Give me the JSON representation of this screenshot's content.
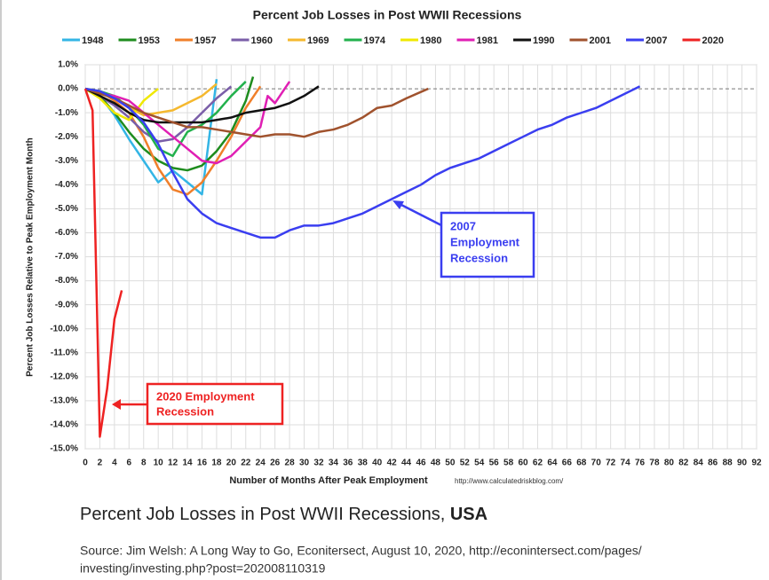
{
  "chart_data": {
    "type": "line",
    "title": "Percent Job Losses in Post WWII Recessions",
    "x_label": "Number of Months After Peak Employment",
    "y_label": "Percent Job Losses Relative to Peak Employment Month",
    "source_note": "http://www.calculatedriskblog.com/",
    "xlim": [
      0,
      92
    ],
    "xticks": [
      0,
      2,
      4,
      6,
      8,
      10,
      12,
      14,
      16,
      18,
      20,
      22,
      24,
      26,
      28,
      30,
      32,
      34,
      36,
      38,
      40,
      42,
      44,
      46,
      48,
      50,
      52,
      54,
      56,
      58,
      60,
      62,
      64,
      66,
      68,
      70,
      72,
      74,
      76,
      78,
      80,
      82,
      84,
      86,
      88,
      90,
      92
    ],
    "ylim": [
      -15,
      1
    ],
    "yticks": [
      {
        "value": 1,
        "label": "1.0%"
      },
      {
        "value": 0,
        "label": "0.0%"
      },
      {
        "value": -1,
        "label": "-1.0%"
      },
      {
        "value": -2,
        "label": "-2.0%"
      },
      {
        "value": -3,
        "label": "-3.0%"
      },
      {
        "value": -4,
        "label": "-4.0%"
      },
      {
        "value": -5,
        "label": "-5.0%"
      },
      {
        "value": -6,
        "label": "-6.0%"
      },
      {
        "value": -7,
        "label": "-7.0%"
      },
      {
        "value": -8,
        "label": "-8.0%"
      },
      {
        "value": -9,
        "label": "-9.0%"
      },
      {
        "value": -10,
        "label": "-10.0%"
      },
      {
        "value": -11,
        "label": "-11.0%"
      },
      {
        "value": -12,
        "label": "-12.0%"
      },
      {
        "value": -13,
        "label": "-13.0%"
      },
      {
        "value": -14,
        "label": "-14.0%"
      },
      {
        "value": -15,
        "label": "-15.0%"
      }
    ],
    "grid": true,
    "legend": "top",
    "series": [
      {
        "name": "1948",
        "color": "#33b5e5",
        "x": [
          0,
          2,
          4,
          6,
          8,
          10,
          12,
          14,
          16,
          17,
          18
        ],
        "values": [
          0,
          -0.3,
          -1.1,
          -2.1,
          -3,
          -3.9,
          -3.4,
          -3.9,
          -4.4,
          -2,
          0.4
        ]
      },
      {
        "name": "1953",
        "color": "#1e8c1e",
        "x": [
          0,
          2,
          4,
          6,
          8,
          10,
          12,
          14,
          16,
          18,
          20,
          22,
          23
        ],
        "values": [
          0,
          -0.3,
          -1,
          -1.8,
          -2.5,
          -3,
          -3.3,
          -3.4,
          -3.2,
          -2.6,
          -1.8,
          -0.5,
          0.5
        ]
      },
      {
        "name": "1957",
        "color": "#f07f2a",
        "x": [
          0,
          2,
          4,
          6,
          8,
          10,
          12,
          14,
          16,
          18,
          20,
          22,
          24
        ],
        "values": [
          0,
          -0.1,
          -0.5,
          -1,
          -2,
          -3.3,
          -4.2,
          -4.4,
          -3.9,
          -3,
          -2,
          -0.8,
          0.1
        ]
      },
      {
        "name": "1960",
        "color": "#7a5ea8",
        "x": [
          0,
          2,
          4,
          6,
          8,
          10,
          12,
          14,
          16,
          18,
          20
        ],
        "values": [
          0,
          -0.3,
          -0.7,
          -1.2,
          -1.8,
          -2.2,
          -2.1,
          -1.6,
          -1,
          -0.4,
          0.1
        ]
      },
      {
        "name": "1969",
        "color": "#f5b82e",
        "x": [
          0,
          2,
          4,
          6,
          8,
          10,
          12,
          14,
          16,
          18
        ],
        "values": [
          0,
          -0.2,
          -0.4,
          -0.8,
          -1.1,
          -1,
          -0.9,
          -0.6,
          -0.3,
          0.2
        ]
      },
      {
        "name": "1974",
        "color": "#22b14c",
        "x": [
          0,
          2,
          4,
          6,
          8,
          10,
          12,
          14,
          16,
          18,
          20,
          22
        ],
        "values": [
          0,
          -0.1,
          -0.3,
          -0.8,
          -1.5,
          -2.5,
          -2.8,
          -1.8,
          -1.5,
          -1,
          -0.3,
          0.3
        ]
      },
      {
        "name": "1980",
        "color": "#f0e800",
        "x": [
          0,
          2,
          4,
          6,
          8,
          10
        ],
        "values": [
          0,
          -0.4,
          -1,
          -1.3,
          -0.5,
          0
        ]
      },
      {
        "name": "1981",
        "color": "#e01fb4",
        "x": [
          0,
          2,
          4,
          6,
          8,
          10,
          12,
          14,
          16,
          18,
          20,
          22,
          24,
          25,
          26,
          28
        ],
        "values": [
          0,
          -0.2,
          -0.3,
          -0.5,
          -1,
          -1.5,
          -2,
          -2.5,
          -3,
          -3.1,
          -2.8,
          -2.2,
          -1.6,
          -0.3,
          -0.6,
          0.3
        ]
      },
      {
        "name": "1990",
        "color": "#111111",
        "x": [
          0,
          2,
          4,
          6,
          8,
          10,
          12,
          14,
          16,
          18,
          20,
          22,
          24,
          26,
          28,
          30,
          32
        ],
        "values": [
          0,
          -0.3,
          -0.6,
          -1,
          -1.3,
          -1.4,
          -1.4,
          -1.4,
          -1.4,
          -1.3,
          -1.2,
          -1,
          -0.9,
          -0.8,
          -0.6,
          -0.3,
          0.1
        ]
      },
      {
        "name": "2001",
        "color": "#a0522d",
        "x": [
          0,
          2,
          4,
          6,
          8,
          10,
          12,
          14,
          16,
          18,
          20,
          22,
          24,
          26,
          28,
          30,
          32,
          34,
          36,
          38,
          40,
          42,
          44,
          47
        ],
        "values": [
          0,
          -0.2,
          -0.4,
          -0.7,
          -1,
          -1.2,
          -1.4,
          -1.6,
          -1.6,
          -1.7,
          -1.8,
          -1.9,
          -2,
          -1.9,
          -1.9,
          -2,
          -1.8,
          -1.7,
          -1.5,
          -1.2,
          -0.8,
          -0.7,
          -0.4,
          0
        ]
      },
      {
        "name": "2007",
        "color": "#3a3ef0",
        "x": [
          0,
          2,
          4,
          6,
          8,
          10,
          12,
          14,
          16,
          18,
          20,
          22,
          24,
          26,
          28,
          30,
          32,
          34,
          36,
          38,
          40,
          42,
          44,
          46,
          48,
          50,
          52,
          54,
          56,
          58,
          60,
          62,
          64,
          66,
          68,
          70,
          72,
          74,
          76
        ],
        "values": [
          0,
          -0.1,
          -0.4,
          -0.8,
          -1.4,
          -2.3,
          -3.5,
          -4.6,
          -5.2,
          -5.6,
          -5.8,
          -6,
          -6.2,
          -6.2,
          -5.9,
          -5.7,
          -5.7,
          -5.6,
          -5.4,
          -5.2,
          -4.9,
          -4.6,
          -4.3,
          -4,
          -3.6,
          -3.3,
          -3.1,
          -2.9,
          -2.6,
          -2.3,
          -2,
          -1.7,
          -1.5,
          -1.2,
          -1,
          -0.8,
          -0.5,
          -0.2,
          0.1
        ]
      },
      {
        "name": "2020",
        "color": "#ee2222",
        "x": [
          0,
          1,
          2,
          3,
          4,
          5
        ],
        "values": [
          0,
          -0.9,
          -14.5,
          -12.5,
          -9.6,
          -8.4
        ]
      }
    ],
    "annotations": [
      {
        "lines": [
          "2007",
          "Employment",
          "Recession"
        ],
        "color": "#3a3ef0"
      },
      {
        "lines": [
          "2020 Employment",
          "Recession"
        ],
        "color": "#ee2222"
      }
    ]
  },
  "caption": {
    "title": "Percent Job Losses in Post WWII Recessions, ",
    "title_bold": "USA",
    "source_lines": [
      "Source: Jim Welsh: A Long Way to Go, Econitersect, August 10, 2020, http://econintersect.com/pages/",
      "investing/investing.php?post=202008110319"
    ]
  }
}
